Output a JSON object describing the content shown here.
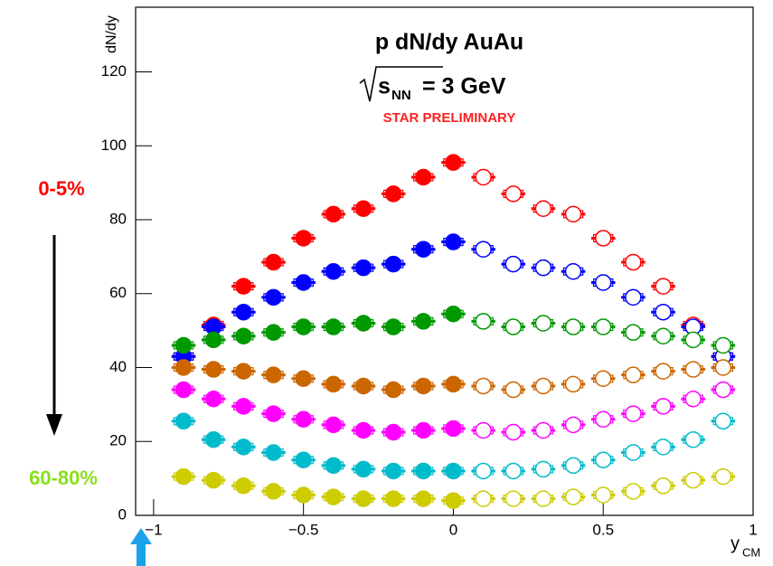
{
  "chart_data": {
    "type": "scatter",
    "title": "p dN/dy AuAu",
    "energy_label": {
      "base": "s",
      "sub": "NN",
      "rest": "= 3 GeV"
    },
    "preliminary": "STAR PRELIMINARY",
    "y_label": "dN/dy",
    "x_label": {
      "base": "y",
      "sub": "CM"
    },
    "annotations": [
      "0-5%",
      "60-80%"
    ],
    "annotation_colors": [
      "#ff0000",
      "#88e01a"
    ],
    "x": [
      -0.9,
      -0.8,
      -0.7,
      -0.6,
      -0.5,
      -0.4,
      -0.3,
      -0.2,
      -0.1,
      0,
      0.1,
      0.2,
      0.3,
      0.4,
      0.5,
      0.6,
      0.7,
      0.8,
      0.9
    ],
    "series": [
      {
        "color": "#ff0000",
        "values": [
          43,
          51.5,
          62,
          68.5,
          75,
          81.5,
          83,
          87,
          91.5,
          95.5,
          91.5,
          87,
          83,
          81.5,
          75,
          68.5,
          62,
          51.5,
          43
        ]
      },
      {
        "color": "#0000ff",
        "values": [
          43,
          51,
          55,
          59,
          63,
          66,
          67,
          68,
          72,
          74,
          72,
          68,
          67,
          66,
          63,
          59,
          55,
          51,
          43
        ]
      },
      {
        "color": "#009900",
        "values": [
          46,
          47.5,
          48.5,
          49.5,
          51,
          51,
          52,
          51,
          52.5,
          54.5,
          52.5,
          51,
          52,
          51,
          51,
          49.5,
          48.5,
          47.5,
          46
        ]
      },
      {
        "color": "#cc6600",
        "values": [
          40,
          39.5,
          39,
          38,
          37,
          35.5,
          35,
          34,
          35,
          35.5,
          35,
          34,
          35,
          35.5,
          37,
          38,
          39,
          39.5,
          40
        ]
      },
      {
        "color": "#ff00ff",
        "values": [
          34,
          31.5,
          29.5,
          27.5,
          26,
          24.5,
          23,
          22.5,
          23,
          23.5,
          23,
          22.5,
          23,
          24.5,
          26,
          27.5,
          29.5,
          31.5,
          34
        ]
      },
      {
        "color": "#00bbcc",
        "values": [
          25.5,
          20.5,
          18.5,
          17,
          15,
          13.5,
          12.5,
          12,
          12,
          12,
          12,
          12,
          12.5,
          13.5,
          15,
          17,
          18.5,
          20.5,
          25.5
        ]
      },
      {
        "color": "#cccc00",
        "values": [
          10.5,
          9.5,
          8,
          6.5,
          5.5,
          5,
          4.5,
          4.5,
          4.5,
          4,
          4.5,
          4.5,
          4.5,
          5,
          5.5,
          6.5,
          8,
          9.5,
          10.5
        ]
      }
    ],
    "xlim": [
      -1.06,
      1.0
    ],
    "ylim": [
      0,
      137.5
    ],
    "xticks": [
      {
        "value": -1,
        "label": "−1"
      },
      {
        "value": -0.5,
        "label": "−0.5"
      },
      0,
      0.5,
      1
    ],
    "yticks": [
      0,
      20,
      40,
      60,
      80,
      100,
      120
    ]
  }
}
